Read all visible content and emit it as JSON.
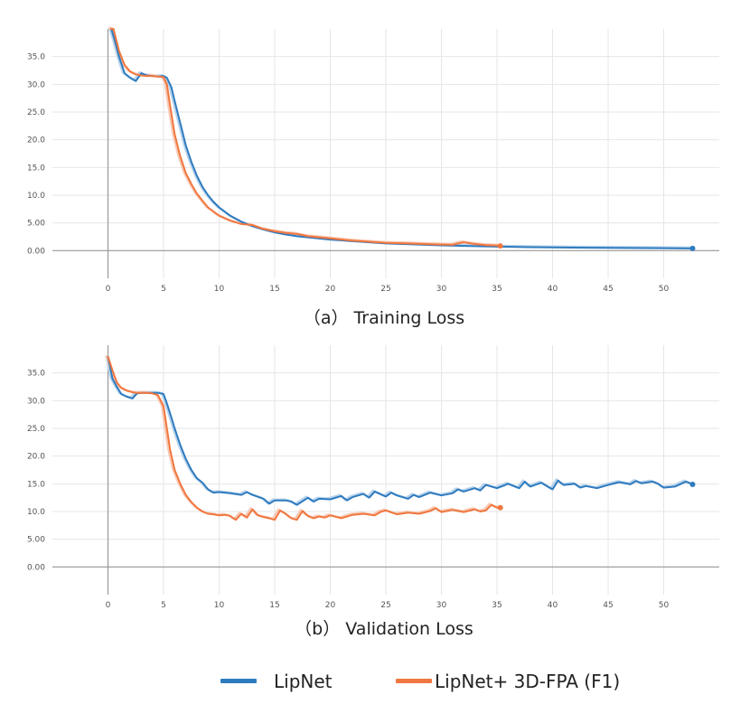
{
  "colors": {
    "lipnet": "#2f7bbf",
    "fpa": "#f0773f",
    "lipnet_raw": "#b9d4ec",
    "fpa_raw": "#f8c9b4",
    "grid": "#e6e6e6",
    "zero_line": "#999999"
  },
  "legend": {
    "placement": "bottom-center",
    "items": [
      {
        "label": "LipNet",
        "color": "#2f7bbf"
      },
      {
        "label": "LipNet+ 3D-FPA (F1)",
        "color": "#f0773f"
      }
    ]
  },
  "chart_data": [
    {
      "type": "line",
      "caption": "（a） Training Loss",
      "grid": true,
      "xlim": [
        -5,
        55
      ],
      "ylim": [
        -5,
        40
      ],
      "xticks": [
        0,
        5,
        10,
        15,
        20,
        25,
        30,
        35,
        40,
        45,
        50
      ],
      "xtick_labels": [
        "0",
        "5",
        "10",
        "15",
        "20",
        "25",
        "30",
        "35",
        "40",
        "45",
        "50"
      ],
      "yticks": [
        0,
        5,
        10,
        15,
        20,
        25,
        30,
        35
      ],
      "ytick_labels": [
        "0.00",
        "5.00",
        "10.0",
        "15.0",
        "20.0",
        "25.0",
        "30.0",
        "35.0"
      ],
      "series": [
        {
          "name": "LipNet",
          "color": "#2f7bbf",
          "x": [
            0.3,
            0.6,
            1,
            1.5,
            2,
            2.5,
            3,
            3.5,
            4,
            4.5,
            5,
            5.3,
            5.7,
            6,
            6.5,
            7,
            7.5,
            8,
            8.5,
            9,
            9.5,
            10,
            11,
            12,
            13,
            14,
            15,
            16,
            17,
            18,
            20,
            22,
            25,
            28,
            30,
            33,
            35,
            38,
            40,
            45,
            50,
            52.6
          ],
          "y": [
            42,
            38,
            35,
            32,
            31.2,
            30.6,
            32,
            31.6,
            31.5,
            31.4,
            31.5,
            31.2,
            29.5,
            27,
            23,
            19,
            16,
            13.5,
            11.5,
            10,
            8.8,
            7.8,
            6.3,
            5.2,
            4.4,
            3.8,
            3.3,
            2.9,
            2.6,
            2.4,
            2.0,
            1.7,
            1.3,
            1.1,
            0.95,
            0.8,
            0.72,
            0.62,
            0.58,
            0.5,
            0.45,
            0.4
          ]
        },
        {
          "name": "LipNet+ 3D-FPA (F1)",
          "color": "#f0773f",
          "x": [
            0.2,
            0.5,
            1,
            1.5,
            2,
            2.5,
            3,
            3.5,
            4,
            4.5,
            5,
            5.3,
            5.6,
            6,
            6.5,
            7,
            7.5,
            8,
            8.5,
            9,
            10,
            11,
            12,
            13,
            14,
            15,
            16,
            17,
            18,
            20,
            22,
            25,
            27,
            29,
            30,
            31,
            32,
            33,
            34,
            35,
            35.3
          ],
          "y": [
            45,
            40,
            36,
            33.5,
            32.3,
            31.8,
            31.6,
            31.5,
            31.5,
            31.4,
            31.3,
            30,
            26,
            21,
            17,
            14,
            12,
            10.3,
            9,
            7.8,
            6.3,
            5.4,
            4.8,
            4.6,
            3.9,
            3.5,
            3.2,
            3.0,
            2.6,
            2.2,
            1.8,
            1.4,
            1.3,
            1.15,
            1.1,
            1.05,
            1.5,
            1.2,
            1.0,
            0.9,
            0.85
          ]
        }
      ]
    },
    {
      "type": "line",
      "caption": "（b） Validation Loss",
      "grid": true,
      "xlim": [
        -5,
        55
      ],
      "ylim": [
        -5,
        40
      ],
      "xticks": [
        0,
        5,
        10,
        15,
        20,
        25,
        30,
        35,
        40,
        45,
        50
      ],
      "xtick_labels": [
        "0",
        "5",
        "10",
        "15",
        "20",
        "25",
        "30",
        "35",
        "40",
        "45",
        "50"
      ],
      "yticks": [
        0,
        5,
        10,
        15,
        20,
        25,
        30,
        35
      ],
      "ytick_labels": [
        "0.00",
        "5.00",
        "10.0",
        "15.0",
        "20.0",
        "25.0",
        "30.0",
        "35.0"
      ],
      "series": [
        {
          "name": "LipNet",
          "color": "#2f7bbf",
          "x": [
            0,
            0.4,
            0.8,
            1.2,
            1.7,
            2.2,
            2.6,
            3,
            3.5,
            4,
            4.5,
            5,
            5.3,
            5.7,
            6,
            6.5,
            7,
            7.5,
            8,
            8.5,
            9,
            9.5,
            10,
            11,
            12,
            12.5,
            13,
            14,
            14.5,
            15,
            16,
            16.5,
            17,
            18,
            18.5,
            19,
            20,
            21,
            21.5,
            22,
            23,
            23.5,
            24,
            25,
            25.5,
            26,
            27,
            27.5,
            28,
            29,
            30,
            31,
            31.5,
            32,
            33,
            33.5,
            34,
            35,
            35.5,
            36,
            37,
            37.5,
            38,
            39,
            40,
            40.5,
            41,
            42,
            42.5,
            43,
            44,
            45,
            46,
            47,
            47.5,
            48,
            49,
            49.5,
            50,
            51,
            52,
            52.6
          ],
          "y": [
            38,
            34,
            32.5,
            31.2,
            30.7,
            30.4,
            31.3,
            31.4,
            31.4,
            31.4,
            31.4,
            31.2,
            29.5,
            27,
            25,
            22,
            19.5,
            17.5,
            16,
            15.2,
            14,
            13.4,
            13.5,
            13.3,
            13,
            13.5,
            13,
            12.3,
            11.4,
            12,
            12,
            11.8,
            11.2,
            12.5,
            11.8,
            12.3,
            12.2,
            12.8,
            12,
            12.6,
            13.2,
            12.5,
            13.6,
            12.7,
            13.4,
            12.9,
            12.3,
            13,
            12.6,
            13.4,
            12.9,
            13.3,
            14,
            13.6,
            14.2,
            13.8,
            14.8,
            14.2,
            14.6,
            15,
            14.2,
            15.4,
            14.5,
            15.2,
            14,
            15.6,
            14.8,
            15,
            14.3,
            14.6,
            14.2,
            14.8,
            15.3,
            14.9,
            15.5,
            15.1,
            15.4,
            15.0,
            14.3,
            14.5,
            15.4,
            14.9
          ]
        },
        {
          "name": "LipNet+ 3D-FPA (F1)",
          "color": "#f0773f",
          "x": [
            0,
            0.4,
            0.8,
            1.2,
            1.7,
            2.2,
            2.6,
            3,
            3.5,
            4,
            4.5,
            5,
            5.3,
            5.6,
            6,
            6.5,
            7,
            7.5,
            8,
            8.5,
            9,
            9.5,
            10,
            10.5,
            11,
            11.5,
            12,
            12.5,
            13,
            13.5,
            14,
            14.5,
            15,
            15.5,
            16,
            16.5,
            17,
            17.5,
            18,
            18.5,
            19,
            19.5,
            20,
            21,
            22,
            23,
            24,
            24.5,
            25,
            26,
            27,
            28,
            29,
            29.5,
            30,
            31,
            32,
            33,
            33.5,
            34,
            34.5,
            35,
            35.3
          ],
          "y": [
            38,
            35.5,
            33.3,
            32.3,
            31.8,
            31.5,
            31.4,
            31.4,
            31.4,
            31.3,
            31,
            29,
            25,
            21,
            17.5,
            15,
            13,
            11.7,
            10.7,
            10,
            9.6,
            9.5,
            9.3,
            9.4,
            9.2,
            8.5,
            9.6,
            8.9,
            10.4,
            9.3,
            9.0,
            8.8,
            8.5,
            10.2,
            9.6,
            8.8,
            8.5,
            10.1,
            9.2,
            8.8,
            9.1,
            8.9,
            9.3,
            8.8,
            9.4,
            9.6,
            9.3,
            9.9,
            10.2,
            9.5,
            9.8,
            9.6,
            10.1,
            10.6,
            9.9,
            10.3,
            9.9,
            10.4,
            10,
            10.2,
            11.2,
            10.7,
            10.7
          ]
        }
      ]
    }
  ]
}
